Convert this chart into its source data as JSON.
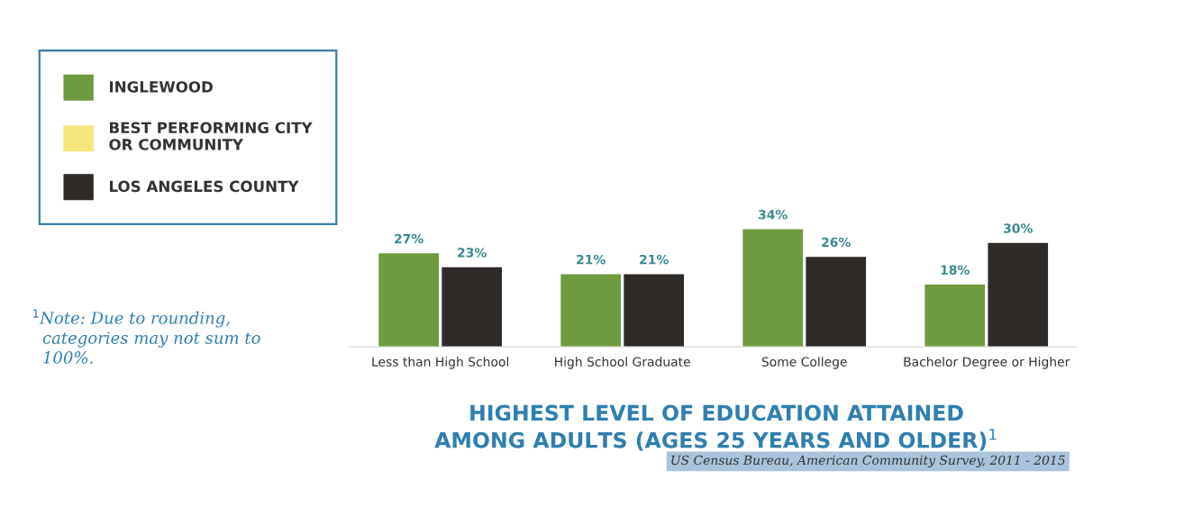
{
  "chart_data": {
    "type": "bar",
    "title": "HIGHEST LEVEL OF EDUCATION ATTAINED\nAMONG ADULTS (AGES 25 YEARS AND OLDER)$^{1}$",
    "categories": [
      "Less than High School",
      "High School Graduate",
      "Some College",
      "Bachelor Degree or Higher"
    ],
    "series": [
      {
        "name": "INGLEWOOD",
        "color": "#6f9a3f",
        "values": [
          27,
          21,
          34,
          18
        ],
        "value_labels": [
          "27%",
          "21%",
          "34%",
          "18%"
        ]
      },
      {
        "name": "BEST PERFORMING CITY\nOR COMMUNITY",
        "color": "#f4e67c",
        "values": [
          null,
          null,
          null,
          null
        ]
      },
      {
        "name": "LOS ANGELES COUNTY",
        "color": "#2e2a28",
        "values": [
          23,
          21,
          26,
          30
        ],
        "value_labels": [
          "23%",
          "21%",
          "26%",
          "30%"
        ]
      }
    ],
    "legend": "left",
    "grid": false,
    "annotations": [
      "$^{1}$Note: Due to rounding,\n  categories may not sum to\n  100%.",
      "US Census Bureau, American Community Survey, 2011 - 2015"
    ]
  }
}
